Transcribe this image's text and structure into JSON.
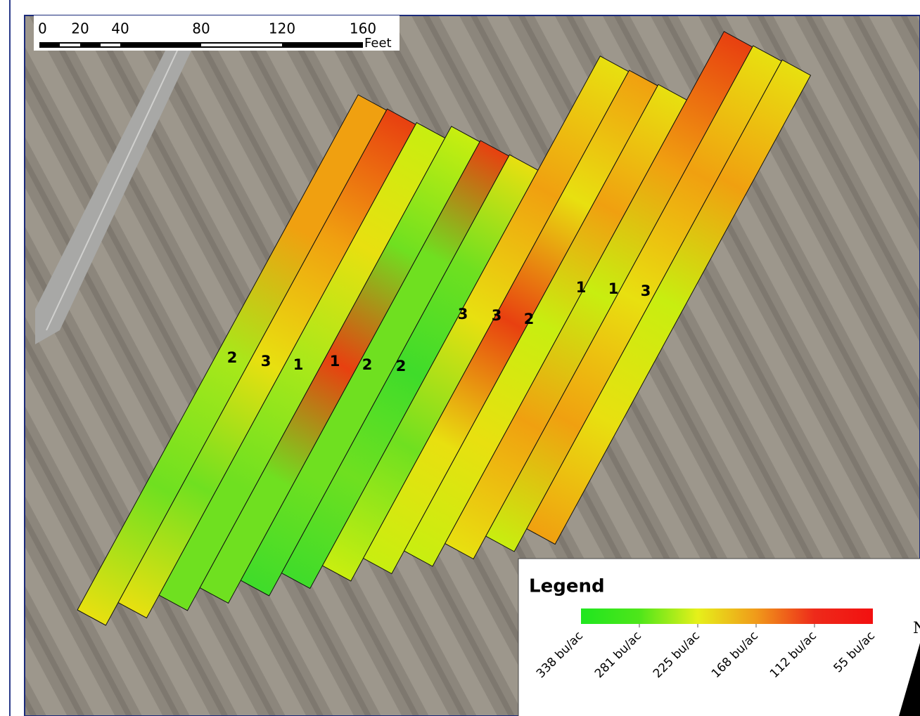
{
  "scale_bar": {
    "labels": [
      "0",
      "20",
      "40",
      "80",
      "120",
      "160"
    ],
    "unit": "Feet"
  },
  "strip_labels": [
    "2",
    "3",
    "1",
    "1",
    "2",
    "2",
    "3",
    "3",
    "2",
    "1",
    "1",
    "3"
  ],
  "legend": {
    "title": "Legend",
    "labels": [
      "338 bu/ac",
      "281 bu/ac",
      "225 bu/ac",
      "168 bu/ac",
      "112 bu/ac",
      "55 bu/ac"
    ]
  },
  "north": "N"
}
